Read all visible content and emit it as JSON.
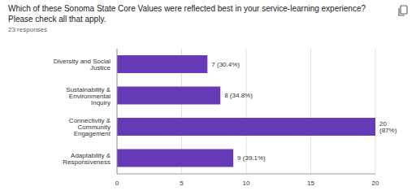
{
  "chart_data": {
    "type": "bar",
    "title": "Which of these Sonoma State Core Values were reflected best in your service-learning experience? Please check all that apply.",
    "subtitle": "23 responses",
    "categories": [
      "Diversity and Social Justice",
      "Sustainability & Environmental Inquiry",
      "Connectivity & Community Engagement",
      "Adaptability & Responsiveness"
    ],
    "values": [
      7,
      8,
      20,
      9
    ],
    "value_labels": [
      "7 (30.4%)",
      "8 (34.8%)",
      "20 (87%)",
      "9 (39.1%)"
    ],
    "color": "#673ab7",
    "orientation": "horizontal",
    "xlim": [
      0,
      20
    ],
    "xticks": [
      0,
      5,
      10,
      15,
      20
    ],
    "grid": true,
    "data_labels": true
  }
}
